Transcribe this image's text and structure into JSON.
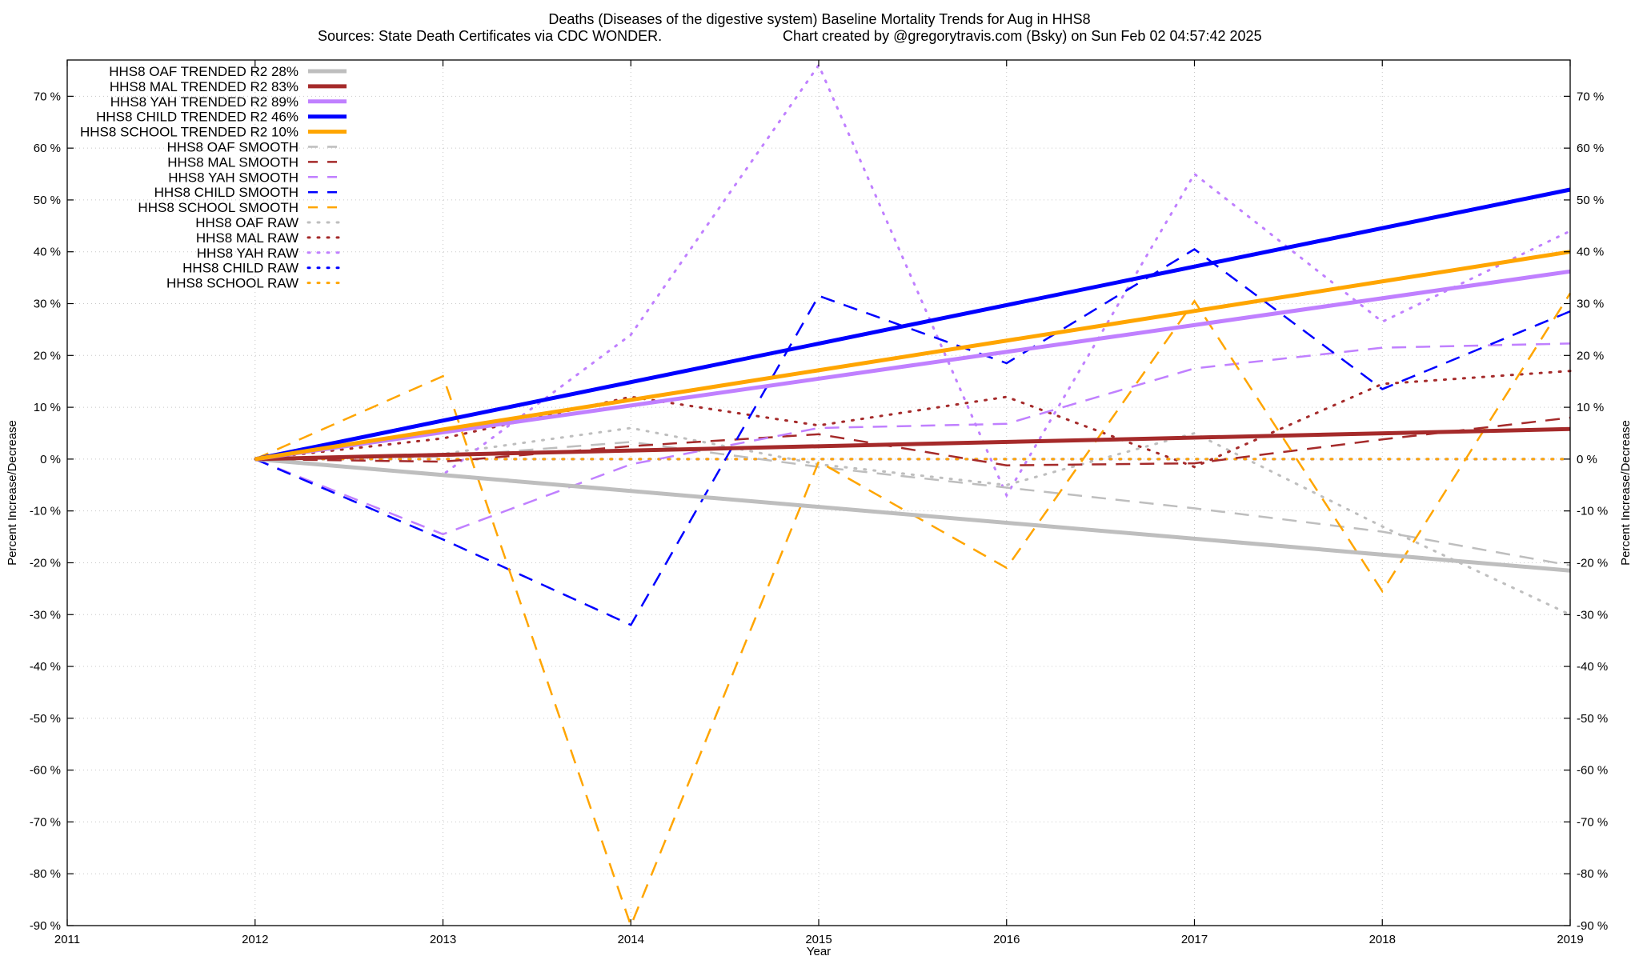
{
  "title_line1": "Deaths (Diseases of the digestive system)  Baseline Mortality Trends for Aug in HHS8",
  "title_line2_left": "Sources: State Death Certificates via CDC WONDER.",
  "title_line2_right": "Chart created by @gregorytravis.com (Bsky) on Sun Feb 02 04:57:42 2025",
  "chart_data": {
    "type": "line",
    "xlabel": "Year",
    "ylabel": "Percent Increase/Decrease",
    "y2label": "Percent Increase/Decrease",
    "xlim": [
      2011,
      2019
    ],
    "ylim": [
      -90,
      77
    ],
    "xticks": [
      2011,
      2012,
      2013,
      2014,
      2015,
      2016,
      2017,
      2018,
      2019
    ],
    "yticks": [
      -90,
      -80,
      -70,
      -60,
      -50,
      -40,
      -30,
      -20,
      -10,
      0,
      10,
      20,
      30,
      40,
      50,
      60,
      70
    ],
    "ytick_suffix": " %",
    "grid": true,
    "legend_position": "top-left",
    "series": [
      {
        "name": "HHS8 OAF TRENDED R2  28%",
        "color": "#bebebe",
        "style": "solid",
        "width": 5,
        "x": [
          2012,
          2019
        ],
        "y": [
          0,
          -21.5
        ]
      },
      {
        "name": "HHS8 MAL TRENDED R2  83%",
        "color": "#a52a2a",
        "style": "solid",
        "width": 5,
        "x": [
          2012,
          2019
        ],
        "y": [
          0,
          5.8
        ]
      },
      {
        "name": "HHS8 YAH TRENDED R2  89%",
        "color": "#c080ff",
        "style": "solid",
        "width": 5,
        "x": [
          2012,
          2019
        ],
        "y": [
          0,
          36.2
        ]
      },
      {
        "name": "HHS8 CHILD TRENDED R2  46%",
        "color": "#0000ff",
        "style": "solid",
        "width": 5,
        "x": [
          2012,
          2019
        ],
        "y": [
          0,
          52
        ]
      },
      {
        "name": "HHS8 SCHOOL TRENDED R2  10%",
        "color": "#ffa500",
        "style": "solid",
        "width": 5,
        "x": [
          2012,
          2019
        ],
        "y": [
          0,
          40
        ]
      },
      {
        "name": "HHS8 OAF SMOOTH",
        "color": "#bebebe",
        "style": "dashed",
        "width": 2.5,
        "x": [
          2012,
          2013,
          2014,
          2015,
          2016,
          2017,
          2018,
          2019
        ],
        "y": [
          0,
          0.5,
          3.3,
          -1.5,
          -5.5,
          -9.5,
          -14,
          -20.5
        ]
      },
      {
        "name": "HHS8 MAL SMOOTH",
        "color": "#a52a2a",
        "style": "dashed",
        "width": 2.5,
        "x": [
          2012,
          2013,
          2014,
          2015,
          2016,
          2017,
          2018,
          2019
        ],
        "y": [
          0,
          -0.5,
          2.5,
          4.8,
          -1.2,
          -0.8,
          3.8,
          8
        ]
      },
      {
        "name": "HHS8 YAH SMOOTH",
        "color": "#c080ff",
        "style": "dashed",
        "width": 2.5,
        "x": [
          2012,
          2013,
          2014,
          2015,
          2016,
          2017,
          2018,
          2019
        ],
        "y": [
          0,
          -14.5,
          -1,
          6,
          6.8,
          17.5,
          21.5,
          22.3
        ]
      },
      {
        "name": "HHS8 CHILD SMOOTH",
        "color": "#0000ff",
        "style": "dashed",
        "width": 2.5,
        "x": [
          2012,
          2013,
          2014,
          2015,
          2016,
          2017,
          2018,
          2019
        ],
        "y": [
          0,
          -15.5,
          -32,
          31.5,
          18.5,
          40.5,
          13.5,
          28.5
        ]
      },
      {
        "name": "HHS8 SCHOOL SMOOTH",
        "color": "#ffa500",
        "style": "dashed",
        "width": 2.5,
        "x": [
          2012,
          2013,
          2014,
          2015,
          2016,
          2017,
          2018,
          2019
        ],
        "y": [
          0,
          16,
          -90,
          -0.5,
          -21,
          30.5,
          -25.5,
          32
        ]
      },
      {
        "name": "HHS8 OAF RAW",
        "color": "#bebebe",
        "style": "dotted",
        "width": 3,
        "x": [
          2012,
          2013,
          2014,
          2015,
          2016,
          2017,
          2018,
          2019
        ],
        "y": [
          0,
          1,
          6,
          -1,
          -5,
          5,
          -13,
          -30
        ]
      },
      {
        "name": "HHS8 MAL RAW",
        "color": "#a52a2a",
        "style": "dotted",
        "width": 3,
        "x": [
          2012,
          2013,
          2014,
          2015,
          2016,
          2017,
          2018,
          2019
        ],
        "y": [
          0,
          4,
          12,
          6.5,
          12,
          -1.5,
          14.5,
          17
        ]
      },
      {
        "name": "HHS8 YAH RAW",
        "color": "#c080ff",
        "style": "dotted",
        "width": 3,
        "x": [
          2012,
          2013,
          2014,
          2015,
          2016,
          2017,
          2018,
          2019
        ],
        "y": [
          0,
          -3,
          24,
          76,
          -7,
          55,
          26.5,
          44
        ]
      },
      {
        "name": "HHS8 CHILD RAW",
        "color": "#0000ff",
        "style": "dotted",
        "width": 3,
        "x": [
          2012,
          2013,
          2014,
          2015,
          2016,
          2017,
          2018,
          2019
        ],
        "y": [
          0,
          0,
          0,
          0,
          0,
          0,
          0,
          0
        ]
      },
      {
        "name": "HHS8 SCHOOL RAW",
        "color": "#ffa500",
        "style": "dotted",
        "width": 3,
        "x": [
          2012,
          2013,
          2014,
          2015,
          2016,
          2017,
          2018,
          2019
        ],
        "y": [
          0,
          0,
          0,
          0,
          0,
          0,
          0,
          0
        ]
      }
    ]
  }
}
